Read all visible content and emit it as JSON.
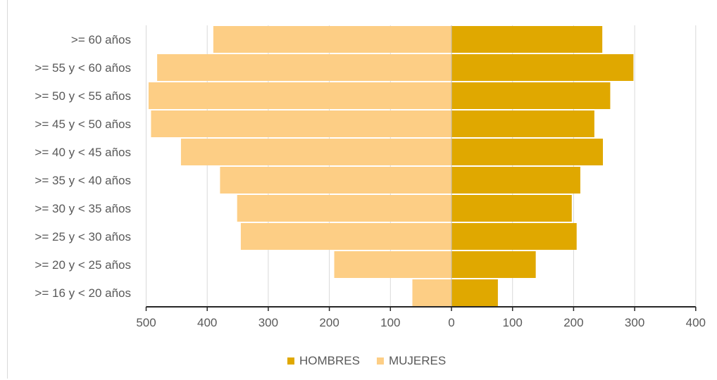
{
  "chart_data": {
    "type": "bar",
    "orientation": "horizontal",
    "layout": "population-pyramid",
    "categories": [
      ">= 60 años",
      ">= 55 y < 60 años",
      ">= 50 y < 55 años",
      ">= 45 y < 50 años",
      ">= 40 y < 45 años",
      ">= 35 y < 40 años",
      ">= 30 y < 35 años",
      ">= 25 y < 30 años",
      ">= 20 y < 25 años",
      ">= 16 y < 20 años"
    ],
    "series": [
      {
        "name": "HOMBRES",
        "side": "right",
        "color": "#E0A800",
        "values": [
          247,
          298,
          260,
          234,
          248,
          211,
          197,
          205,
          138,
          76
        ]
      },
      {
        "name": "MUJERES",
        "side": "left",
        "color": "#FDCE85",
        "values": [
          390,
          482,
          496,
          492,
          443,
          379,
          351,
          345,
          192,
          64
        ]
      }
    ],
    "xlim_left": [
      0,
      500
    ],
    "xlim_right": [
      0,
      400
    ],
    "ticks_left": [
      "500",
      "400",
      "300",
      "200",
      "100",
      "0"
    ],
    "ticks_right": [
      "100",
      "200",
      "300",
      "400"
    ],
    "grid": true,
    "legend_position": "bottom",
    "title": "",
    "xlabel": "",
    "ylabel": ""
  }
}
